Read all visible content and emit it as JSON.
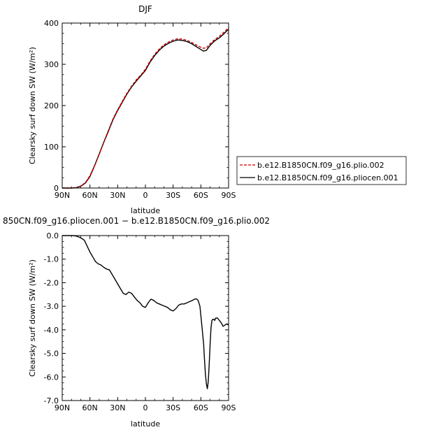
{
  "chart_data": [
    {
      "type": "line",
      "title": "DJF",
      "xlabel": "latitude",
      "ylabel": "Clearsky surf down SW (W/m²)",
      "xlim": [
        -90,
        90
      ],
      "ylim": [
        0,
        400
      ],
      "x_ticks": [
        "90N",
        "60N",
        "30N",
        "0",
        "30S",
        "60S",
        "90S"
      ],
      "y_ticks": [
        "0",
        "100",
        "200",
        "300",
        "400"
      ],
      "legend_position": "right",
      "series": [
        {
          "name": "b.e12.B1850CN.f09_g16.plio.002",
          "color": "#cc0000",
          "dash": true,
          "x": [
            -90,
            -80,
            -75,
            -70,
            -65,
            -60,
            -55,
            -50,
            -45,
            -40,
            -35,
            -30,
            -25,
            -20,
            -15,
            -10,
            -5,
            0,
            5,
            10,
            15,
            20,
            25,
            30,
            35,
            40,
            45,
            50,
            55,
            60,
            63,
            66,
            70,
            75,
            80,
            85,
            90
          ],
          "y": [
            0,
            0,
            1,
            5,
            13,
            30,
            55,
            83,
            112,
            140,
            168,
            190,
            210,
            230,
            247,
            262,
            274,
            288,
            308,
            324,
            337,
            347,
            354,
            359,
            362,
            361,
            358,
            353,
            347,
            341,
            339,
            340,
            350,
            360,
            368,
            378,
            389
          ]
        },
        {
          "name": "b.e12.B1850CN.f09_g16.pliocen.001",
          "color": "#000000",
          "dash": false,
          "x": [
            -90,
            -80,
            -75,
            -70,
            -65,
            -60,
            -55,
            -50,
            -45,
            -40,
            -35,
            -30,
            -25,
            -20,
            -15,
            -10,
            -5,
            0,
            5,
            10,
            15,
            20,
            25,
            30,
            35,
            40,
            45,
            50,
            55,
            60,
            63,
            66,
            70,
            75,
            80,
            85,
            90
          ],
          "y": [
            0,
            0,
            1,
            4,
            12,
            28,
            54,
            82,
            111,
            138,
            166,
            188,
            208,
            228,
            245,
            259,
            272,
            285,
            305,
            321,
            334,
            344,
            351,
            356,
            359,
            358,
            355,
            350,
            343,
            336,
            332,
            334,
            346,
            357,
            364,
            374,
            385
          ]
        }
      ]
    },
    {
      "type": "line",
      "title": "850CN.f09_g16.pliocen.001 − b.e12.B1850CN.f09_g16.plio.002",
      "xlabel": "latitude",
      "ylabel": "Clearsky surf down SW (W/m²)",
      "xlim": [
        -90,
        90
      ],
      "ylim": [
        -7,
        0
      ],
      "x_ticks": [
        "90N",
        "60N",
        "30N",
        "0",
        "30S",
        "60S",
        "90S"
      ],
      "y_ticks": [
        "0.0",
        "-1.0",
        "-2.0",
        "-3.0",
        "-4.0",
        "-5.0",
        "-6.0",
        "-7.0"
      ],
      "series": [
        {
          "color": "#000000",
          "x": [
            -90,
            -78,
            -75,
            -72,
            -69,
            -66,
            -63,
            -60,
            -57,
            -54,
            -51,
            -48,
            -45,
            -42,
            -39,
            -36,
            -33,
            -30,
            -27,
            -24,
            -21,
            -18,
            -15,
            -12,
            -9,
            -6,
            -3,
            0,
            3,
            6,
            9,
            12,
            15,
            18,
            21,
            24,
            27,
            30,
            33,
            36,
            39,
            42,
            45,
            48,
            51,
            53,
            55,
            57,
            59,
            61,
            63,
            64,
            65,
            66,
            67,
            68,
            69,
            70,
            71,
            72,
            73,
            74,
            75,
            76,
            78,
            80,
            82,
            84,
            86,
            88,
            90
          ],
          "y": [
            0,
            0,
            -0.02,
            -0.06,
            -0.12,
            -0.2,
            -0.45,
            -0.7,
            -0.9,
            -1.1,
            -1.2,
            -1.25,
            -1.35,
            -1.42,
            -1.45,
            -1.65,
            -1.85,
            -2.05,
            -2.25,
            -2.45,
            -2.5,
            -2.4,
            -2.45,
            -2.6,
            -2.75,
            -2.85,
            -3.0,
            -3.05,
            -2.85,
            -2.7,
            -2.75,
            -2.85,
            -2.9,
            -2.95,
            -3.0,
            -3.05,
            -3.15,
            -3.2,
            -3.1,
            -2.95,
            -2.9,
            -2.9,
            -2.85,
            -2.8,
            -2.75,
            -2.7,
            -2.68,
            -2.75,
            -3.0,
            -3.8,
            -4.6,
            -5.3,
            -5.9,
            -6.3,
            -6.5,
            -6.2,
            -5.5,
            -4.6,
            -3.9,
            -3.6,
            -3.55,
            -3.55,
            -3.6,
            -3.5,
            -3.5,
            -3.6,
            -3.7,
            -3.85,
            -3.8,
            -3.75,
            -3.8
          ]
        }
      ]
    }
  ]
}
